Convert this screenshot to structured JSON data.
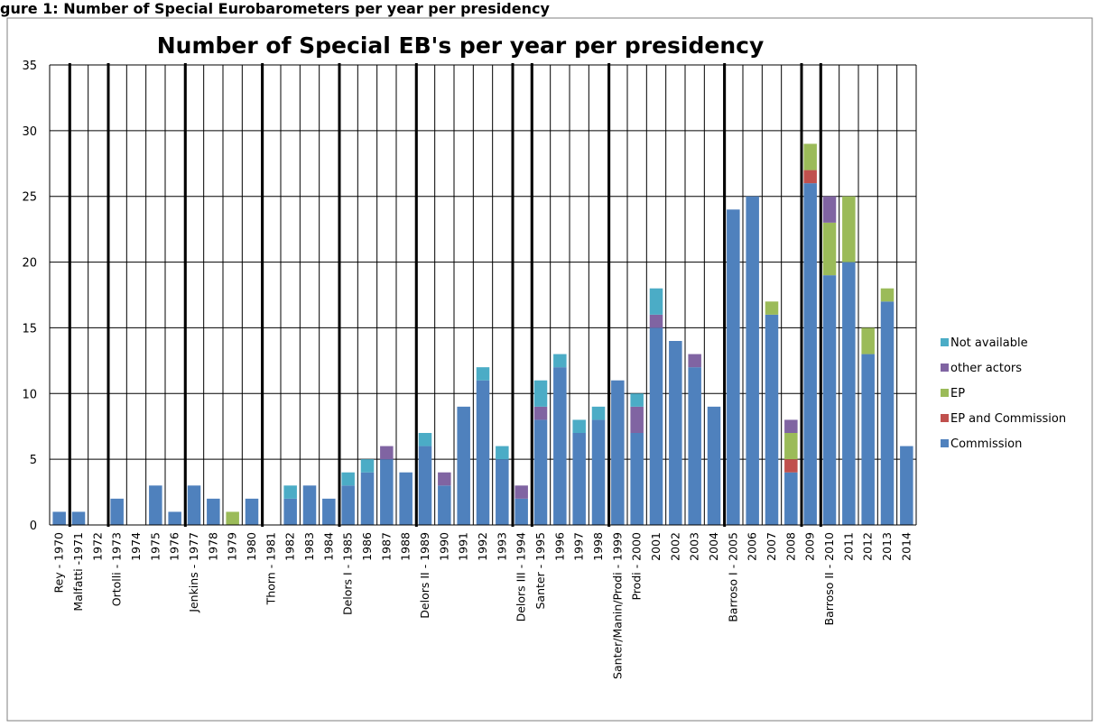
{
  "header": {
    "caption": "gure 1: Number of Special Eurobarometers per year per presidency"
  },
  "chart_data": {
    "type": "bar",
    "stacked": true,
    "title": "Number of Special EB's per year per presidency",
    "xlabel": "",
    "ylabel": "",
    "ylim": [
      0,
      35
    ],
    "yticks": [
      0,
      5,
      10,
      15,
      20,
      25,
      30,
      35
    ],
    "grid": true,
    "legend_position": "right",
    "categories": [
      "Rey - 1970",
      "Malfatti -1971",
      "1972",
      "Ortolli - 1973",
      "1974",
      "1975",
      "1976",
      "Jenkins - 1977",
      "1978",
      "1979",
      "1980",
      "Thorn - 1981",
      "1982",
      "1983",
      "1984",
      "Delors I - 1985",
      "1986",
      "1987",
      "1988",
      "Delors II - 1989",
      "1990",
      "1991",
      "1992",
      "1993",
      "Delors III - 1994",
      "Santer - 1995",
      "1996",
      "1997",
      "1998",
      "Santer/Manin/Prodi - 1999",
      "Prodi - 2000",
      "2001",
      "2002",
      "2003",
      "2004",
      "Barroso I - 2005",
      "2006",
      "2007",
      "2008",
      "2009",
      "Barroso II - 2010",
      "2011",
      "2012",
      "2013",
      "2014"
    ],
    "series": [
      {
        "name": "Commission",
        "color": "#4f81bd",
        "values": [
          1,
          1,
          0,
          2,
          0,
          3,
          1,
          3,
          2,
          0,
          2,
          0,
          2,
          3,
          2,
          3,
          4,
          5,
          4,
          6,
          3,
          9,
          11,
          5,
          2,
          8,
          12,
          7,
          8,
          11,
          7,
          15,
          14,
          12,
          9,
          24,
          25,
          16,
          4,
          26,
          19,
          20,
          13,
          17,
          6
        ]
      },
      {
        "name": "EP and Commission",
        "color": "#c0504d",
        "values": [
          0,
          0,
          0,
          0,
          0,
          0,
          0,
          0,
          0,
          0,
          0,
          0,
          0,
          0,
          0,
          0,
          0,
          0,
          0,
          0,
          0,
          0,
          0,
          0,
          0,
          0,
          0,
          0,
          0,
          0,
          0,
          0,
          0,
          0,
          0,
          0,
          0,
          0,
          1,
          1,
          0,
          0,
          0,
          0,
          0
        ]
      },
      {
        "name": "EP",
        "color": "#9bbb59",
        "values": [
          0,
          0,
          0,
          0,
          0,
          0,
          0,
          0,
          0,
          1,
          0,
          0,
          0,
          0,
          0,
          0,
          0,
          0,
          0,
          0,
          0,
          0,
          0,
          0,
          0,
          0,
          0,
          0,
          0,
          0,
          0,
          0,
          0,
          0,
          0,
          0,
          0,
          1,
          2,
          2,
          4,
          5,
          2,
          1,
          0
        ]
      },
      {
        "name": "other actors",
        "color": "#8064a2",
        "values": [
          0,
          0,
          0,
          0,
          0,
          0,
          0,
          0,
          0,
          0,
          0,
          0,
          0,
          0,
          0,
          0,
          0,
          1,
          0,
          0,
          1,
          0,
          0,
          0,
          1,
          1,
          0,
          0,
          0,
          0,
          2,
          1,
          0,
          1,
          0,
          0,
          0,
          0,
          1,
          0,
          2,
          0,
          0,
          0,
          0
        ]
      },
      {
        "name": "Not available",
        "color": "#4bacc6",
        "values": [
          0,
          0,
          0,
          0,
          0,
          0,
          0,
          0,
          0,
          0,
          0,
          0,
          1,
          0,
          0,
          1,
          1,
          0,
          0,
          1,
          0,
          0,
          1,
          1,
          0,
          2,
          1,
          1,
          1,
          0,
          1,
          2,
          0,
          0,
          0,
          0,
          0,
          0,
          0,
          0,
          0,
          0,
          0,
          0,
          0
        ]
      }
    ],
    "legend_order": [
      "Not available",
      "other actors",
      "EP",
      "EP and Commission",
      "Commission"
    ],
    "presidency_markers": [
      1.05,
      0.95,
      3.9,
      8.2,
      1.0,
      4.6,
      0.9,
      4.0,
      2.25,
      2.1,
      2.6,
      0.3,
      1.0
    ]
  }
}
